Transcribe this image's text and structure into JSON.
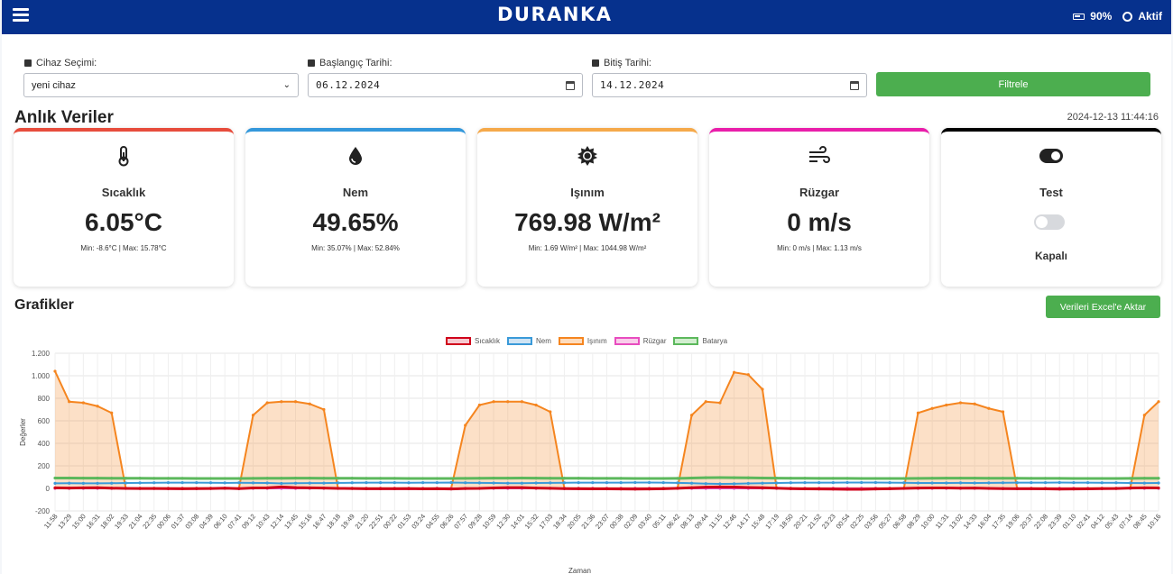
{
  "app": {
    "logo": "DURANKA",
    "battery": "90%",
    "status": "Aktif"
  },
  "filters": {
    "device_label": "Cihaz Seçimi:",
    "device_value": "yeni cihaz",
    "start_label": "Başlangıç Tarihi:",
    "start_value": "06.12.2024",
    "end_label": "Bitiş Tarihi:",
    "end_value": "14.12.2024",
    "filter_button": "Filtrele"
  },
  "live": {
    "title": "Anlık Veriler",
    "timestamp": "2024-12-13 11:44:16",
    "cards": [
      {
        "title": "Sıcaklık",
        "value": "6.05°C",
        "minmax": "Min: -8.6°C | Max: 15.78°C",
        "color": "#e74c3c",
        "icon": "thermometer-icon"
      },
      {
        "title": "Nem",
        "value": "49.65%",
        "minmax": "Min: 35.07% | Max: 52.84%",
        "color": "#3498db",
        "icon": "droplet-icon"
      },
      {
        "title": "Işınım",
        "value": "769.98 W/m²",
        "minmax": "Min: 1.69 W/m² | Max: 1044.98 W/m²",
        "color": "#f5a94a",
        "icon": "sun-icon"
      },
      {
        "title": "Rüzgar",
        "value": "0 m/s",
        "minmax": "Min: 0 m/s | Max: 1.13 m/s",
        "color": "#e91eaa",
        "icon": "wind-icon"
      },
      {
        "title": "Test",
        "state": "Kapalı",
        "color": "#000000",
        "icon": "toggle-icon"
      }
    ]
  },
  "graphs": {
    "title": "Grafikler",
    "export_button": "Verileri Excel'e Aktar"
  },
  "chart_data": {
    "type": "line",
    "xlabel": "Zaman",
    "ylabel": "Değerler",
    "ylim": [
      -200,
      1200
    ],
    "yticks": [
      -200,
      0,
      200,
      400,
      600,
      800,
      "1.000",
      "1.200"
    ],
    "grid": true,
    "legend_position": "top",
    "x": [
      "11:58",
      "13:29",
      "15:00",
      "16:31",
      "18:02",
      "19:33",
      "21:04",
      "22:35",
      "00:06",
      "01:37",
      "03:08",
      "04:39",
      "06:10",
      "07:41",
      "09:12",
      "10:43",
      "12:14",
      "13:45",
      "15:16",
      "16:47",
      "18:18",
      "19:49",
      "21:20",
      "22:51",
      "00:22",
      "01:53",
      "03:24",
      "04:55",
      "06:26",
      "07:57",
      "09:28",
      "10:59",
      "12:30",
      "14:01",
      "15:32",
      "17:03",
      "18:34",
      "20:05",
      "21:36",
      "23:07",
      "00:38",
      "02:09",
      "03:40",
      "05:11",
      "06:42",
      "08:13",
      "09:44",
      "11:15",
      "12:46",
      "14:17",
      "15:48",
      "17:19",
      "18:50",
      "20:21",
      "21:52",
      "23:23",
      "00:54",
      "02:25",
      "03:56",
      "05:27",
      "06:58",
      "08:29",
      "10:00",
      "11:31",
      "13:02",
      "14:33",
      "16:04",
      "17:35",
      "19:06",
      "20:37",
      "22:08",
      "23:39",
      "01:10",
      "02:41",
      "04:12",
      "05:43",
      "07:14",
      "08:45",
      "10:16"
    ],
    "series": [
      {
        "name": "Sıcaklık",
        "color": "#d0021b",
        "values": [
          5,
          3,
          5,
          6,
          2,
          0,
          -1,
          -1,
          -2,
          -3,
          -2,
          -1,
          2,
          -2,
          4,
          5,
          13,
          7,
          5,
          3,
          0,
          -1,
          -3,
          -3,
          -3,
          -2,
          -4,
          -3,
          -5,
          -1,
          0,
          4,
          7,
          7,
          3,
          1,
          -2,
          -3,
          -4,
          -4,
          -5,
          -6,
          -5,
          -3,
          1,
          6,
          11,
          13,
          12,
          8,
          6,
          2,
          -2,
          -4,
          -5,
          -6,
          -8,
          -8,
          -5,
          -3,
          0,
          3,
          4,
          4,
          2,
          3,
          0,
          -2,
          -3,
          -3,
          -4,
          -6,
          -5,
          -4,
          -2,
          -1,
          3,
          5,
          4
        ]
      },
      {
        "name": "Nem",
        "color": "#3a9ad9",
        "values": [
          45,
          46,
          45,
          45,
          46,
          48,
          49,
          50,
          51,
          51,
          51,
          50,
          49,
          50,
          49,
          48,
          44,
          46,
          47,
          47,
          49,
          50,
          51,
          51,
          51,
          50,
          51,
          51,
          52,
          50,
          49,
          48,
          46,
          46,
          48,
          49,
          50,
          51,
          51,
          51,
          51,
          52,
          52,
          51,
          49,
          46,
          42,
          40,
          41,
          44,
          46,
          48,
          50,
          51,
          51,
          51,
          52,
          52,
          52,
          51,
          50,
          48,
          48,
          48,
          49,
          48,
          49,
          50,
          51,
          51,
          51,
          52,
          51,
          51,
          50,
          50,
          48,
          47,
          48
        ]
      },
      {
        "name": "Işınım",
        "color": "#f5851f",
        "values": [
          1040,
          770,
          760,
          730,
          670,
          2,
          2,
          2,
          2,
          2,
          2,
          2,
          2,
          2,
          650,
          760,
          770,
          770,
          750,
          700,
          2,
          2,
          2,
          2,
          2,
          2,
          2,
          2,
          2,
          560,
          740,
          770,
          770,
          770,
          740,
          680,
          2,
          2,
          2,
          2,
          2,
          2,
          2,
          2,
          2,
          650,
          770,
          760,
          1030,
          1010,
          880,
          2,
          2,
          2,
          2,
          2,
          2,
          2,
          2,
          2,
          2,
          670,
          710,
          740,
          760,
          750,
          710,
          680,
          2,
          2,
          2,
          2,
          2,
          2,
          2,
          2,
          2,
          650,
          770
        ]
      },
      {
        "name": "Rüzgar",
        "color": "#e84cbf",
        "values": [
          0,
          0,
          0,
          0,
          0,
          0,
          0,
          0,
          0,
          0,
          0,
          0,
          0,
          0,
          0,
          0,
          0,
          0,
          0,
          0,
          0,
          0,
          0,
          0,
          0,
          0,
          0,
          0,
          0,
          0,
          0,
          0,
          0,
          0,
          0,
          0,
          0,
          0,
          0,
          0,
          0,
          0,
          0,
          0,
          0,
          0,
          0,
          0,
          0,
          0,
          0,
          0,
          0,
          0,
          0,
          0,
          0,
          0,
          0,
          0,
          0,
          0,
          0,
          0,
          0,
          0,
          0,
          0,
          0,
          0,
          0,
          0,
          0,
          0,
          0,
          0,
          0,
          0,
          0
        ]
      },
      {
        "name": "Batarya",
        "color": "#5cb85c",
        "values": [
          92,
          92,
          91,
          91,
          90,
          90,
          90,
          89,
          89,
          89,
          88,
          88,
          88,
          88,
          89,
          90,
          90,
          91,
          91,
          90,
          90,
          90,
          89,
          89,
          89,
          88,
          88,
          88,
          88,
          89,
          90,
          91,
          91,
          92,
          91,
          90,
          90,
          90,
          89,
          89,
          89,
          88,
          88,
          88,
          89,
          92,
          95,
          96,
          95,
          94,
          92,
          91,
          90,
          90,
          89,
          89,
          89,
          88,
          88,
          88,
          88,
          89,
          90,
          91,
          91,
          91,
          90,
          90,
          90,
          89,
          89,
          89,
          88,
          88,
          88,
          88,
          89,
          90,
          90
        ]
      }
    ]
  }
}
